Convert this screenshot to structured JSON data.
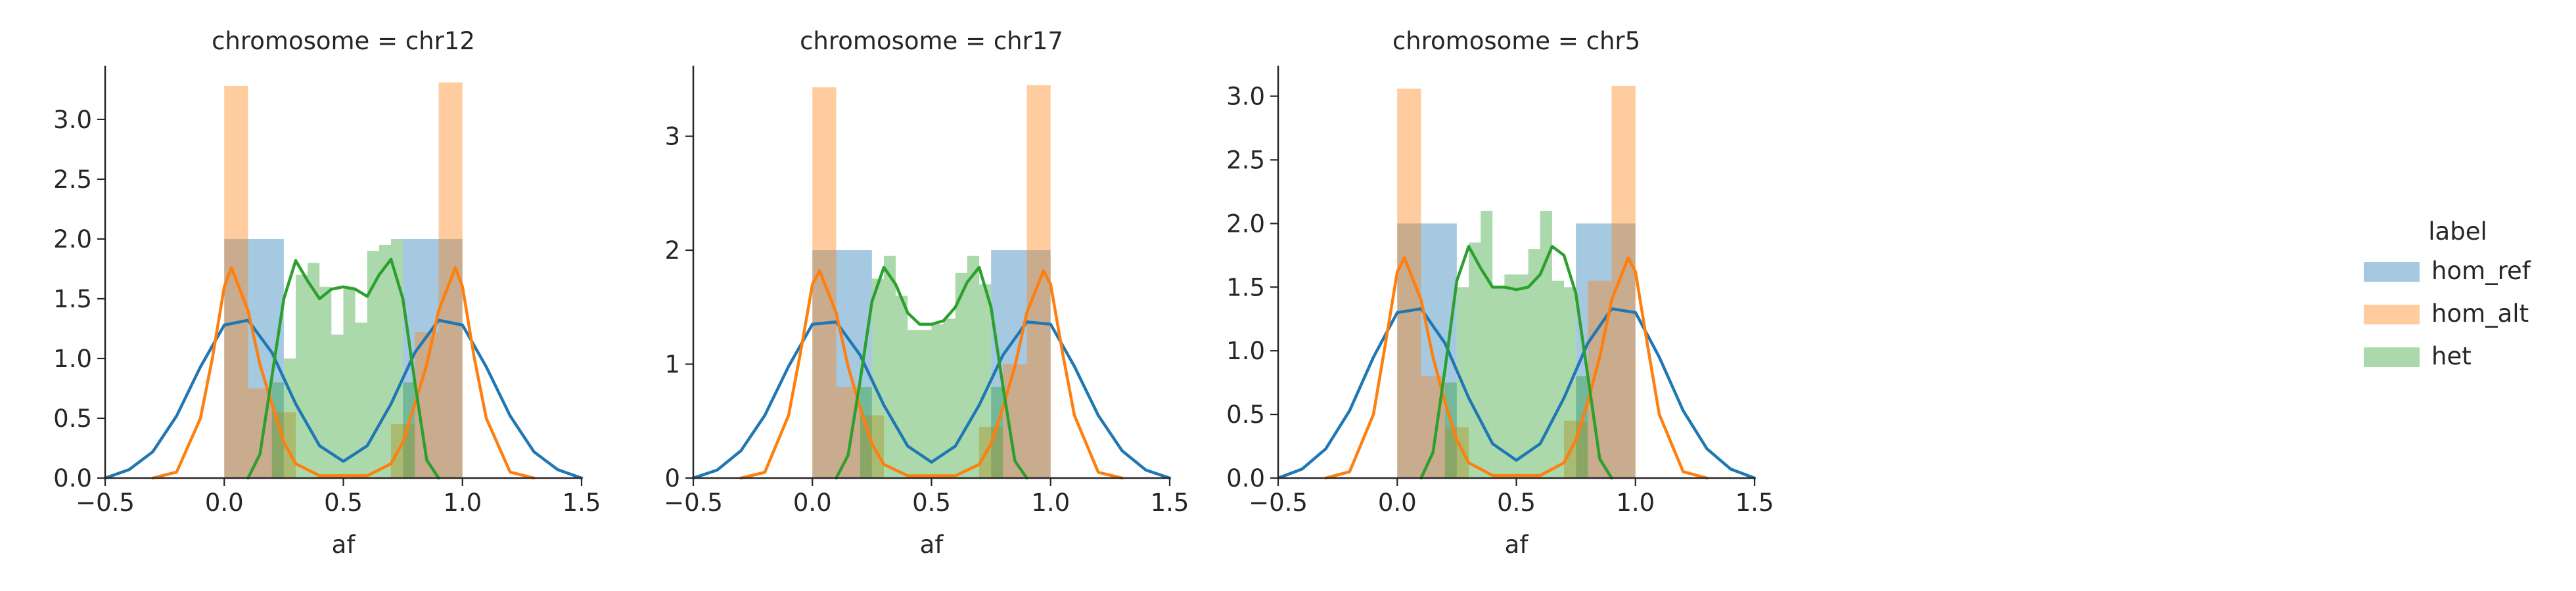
{
  "legend": {
    "title": "label",
    "items": [
      {
        "label": "hom_ref",
        "color": "#1f77b4"
      },
      {
        "label": "hom_alt",
        "color": "#ff7f0e"
      },
      {
        "label": "het",
        "color": "#2ca02c"
      }
    ]
  },
  "chart_data": [
    {
      "type": "bar",
      "title": "chromosome = chr12",
      "xlabel": "af",
      "ylabel": "",
      "xlim": [
        -0.5,
        1.5
      ],
      "ylim": [
        0,
        3.45
      ],
      "xticks": [
        "−0.5",
        "0.0",
        "0.5",
        "1.0",
        "1.5"
      ],
      "yticks": [
        "0.0",
        "0.5",
        "1.0",
        "1.5",
        "2.0",
        "2.5",
        "3.0"
      ],
      "histograms": [
        {
          "series": "hom_ref",
          "bins": [
            [
              0.0,
              0.25,
              2.0
            ],
            [
              0.75,
              1.0,
              2.0
            ]
          ]
        },
        {
          "series": "hom_alt",
          "bins": [
            [
              0.0,
              0.1,
              3.28
            ],
            [
              0.1,
              0.2,
              0.75
            ],
            [
              0.2,
              0.3,
              0.55
            ],
            [
              0.7,
              0.8,
              0.45
            ],
            [
              0.8,
              0.9,
              1.22
            ],
            [
              0.9,
              1.0,
              3.31
            ]
          ]
        },
        {
          "series": "het",
          "bins": [
            [
              0.2,
              0.25,
              0.8
            ],
            [
              0.25,
              0.3,
              1.0
            ],
            [
              0.3,
              0.35,
              1.7
            ],
            [
              0.35,
              0.4,
              1.8
            ],
            [
              0.4,
              0.45,
              1.6
            ],
            [
              0.45,
              0.5,
              1.2
            ],
            [
              0.5,
              0.55,
              1.6
            ],
            [
              0.55,
              0.6,
              1.3
            ],
            [
              0.6,
              0.65,
              1.9
            ],
            [
              0.65,
              0.7,
              1.95
            ],
            [
              0.7,
              0.75,
              2.0
            ],
            [
              0.75,
              0.8,
              0.8
            ]
          ]
        }
      ],
      "kde": [
        {
          "series": "hom_ref",
          "x": [
            -0.5,
            -0.4,
            -0.3,
            -0.2,
            -0.1,
            0.0,
            0.1,
            0.2,
            0.3,
            0.4,
            0.5,
            0.6,
            0.7,
            0.8,
            0.9,
            1.0,
            1.1,
            1.2,
            1.3,
            1.4,
            1.5
          ],
          "y": [
            0.0,
            0.07,
            0.22,
            0.52,
            0.93,
            1.28,
            1.32,
            1.05,
            0.62,
            0.27,
            0.14,
            0.27,
            0.62,
            1.05,
            1.32,
            1.28,
            0.93,
            0.52,
            0.22,
            0.07,
            0.0
          ]
        },
        {
          "series": "hom_alt",
          "x": [
            -0.3,
            -0.2,
            -0.1,
            -0.05,
            0.0,
            0.03,
            0.1,
            0.15,
            0.2,
            0.25,
            0.3,
            0.4,
            0.6,
            0.7,
            0.75,
            0.8,
            0.85,
            0.9,
            0.97,
            1.0,
            1.05,
            1.1,
            1.2,
            1.3
          ],
          "y": [
            0.0,
            0.05,
            0.5,
            1.0,
            1.6,
            1.76,
            1.4,
            0.95,
            0.62,
            0.3,
            0.12,
            0.02,
            0.02,
            0.12,
            0.3,
            0.62,
            0.95,
            1.4,
            1.76,
            1.6,
            1.0,
            0.5,
            0.05,
            0.0
          ]
        },
        {
          "series": "het",
          "x": [
            0.1,
            0.15,
            0.2,
            0.25,
            0.3,
            0.35,
            0.4,
            0.45,
            0.5,
            0.55,
            0.6,
            0.65,
            0.7,
            0.75,
            0.8,
            0.85,
            0.9
          ],
          "y": [
            0.0,
            0.2,
            0.85,
            1.5,
            1.82,
            1.65,
            1.5,
            1.58,
            1.6,
            1.58,
            1.52,
            1.7,
            1.83,
            1.5,
            0.8,
            0.15,
            0.0
          ]
        }
      ]
    },
    {
      "type": "bar",
      "title": "chromosome = chr17",
      "xlabel": "af",
      "ylabel": "",
      "xlim": [
        -0.5,
        1.5
      ],
      "ylim": [
        0,
        3.62
      ],
      "xticks": [
        "−0.5",
        "0.0",
        "0.5",
        "1.0",
        "1.5"
      ],
      "yticks": [
        "0",
        "1",
        "2",
        "3"
      ],
      "histograms": [
        {
          "series": "hom_ref",
          "bins": [
            [
              0.0,
              0.25,
              2.0
            ],
            [
              0.75,
              1.0,
              2.0
            ]
          ]
        },
        {
          "series": "hom_alt",
          "bins": [
            [
              0.0,
              0.1,
              3.43
            ],
            [
              0.1,
              0.2,
              0.8
            ],
            [
              0.2,
              0.3,
              0.55
            ],
            [
              0.7,
              0.8,
              0.45
            ],
            [
              0.8,
              0.9,
              1.0
            ],
            [
              0.9,
              1.0,
              3.45
            ]
          ]
        },
        {
          "series": "het",
          "bins": [
            [
              0.2,
              0.25,
              0.8
            ],
            [
              0.25,
              0.3,
              1.75
            ],
            [
              0.3,
              0.35,
              1.95
            ],
            [
              0.35,
              0.4,
              1.6
            ],
            [
              0.4,
              0.45,
              1.3
            ],
            [
              0.45,
              0.5,
              1.3
            ],
            [
              0.5,
              0.55,
              1.35
            ],
            [
              0.55,
              0.6,
              1.4
            ],
            [
              0.6,
              0.65,
              1.8
            ],
            [
              0.65,
              0.7,
              1.95
            ],
            [
              0.7,
              0.75,
              1.7
            ],
            [
              0.75,
              0.8,
              0.8
            ]
          ]
        }
      ],
      "kde": [
        {
          "series": "hom_ref",
          "x": [
            -0.5,
            -0.4,
            -0.3,
            -0.2,
            -0.1,
            0.0,
            0.1,
            0.2,
            0.3,
            0.4,
            0.5,
            0.6,
            0.7,
            0.8,
            0.9,
            1.0,
            1.1,
            1.2,
            1.3,
            1.4,
            1.5
          ],
          "y": [
            0.0,
            0.07,
            0.24,
            0.55,
            0.98,
            1.35,
            1.37,
            1.08,
            0.64,
            0.28,
            0.14,
            0.28,
            0.64,
            1.08,
            1.37,
            1.35,
            0.98,
            0.55,
            0.24,
            0.07,
            0.0
          ]
        },
        {
          "series": "hom_alt",
          "x": [
            -0.3,
            -0.2,
            -0.1,
            -0.05,
            0.0,
            0.03,
            0.1,
            0.15,
            0.2,
            0.25,
            0.3,
            0.4,
            0.6,
            0.7,
            0.75,
            0.8,
            0.85,
            0.9,
            0.97,
            1.0,
            1.05,
            1.1,
            1.2,
            1.3
          ],
          "y": [
            0.0,
            0.05,
            0.55,
            1.1,
            1.7,
            1.82,
            1.45,
            0.98,
            0.62,
            0.3,
            0.12,
            0.02,
            0.02,
            0.12,
            0.3,
            0.62,
            0.98,
            1.45,
            1.82,
            1.7,
            1.1,
            0.55,
            0.05,
            0.0
          ]
        },
        {
          "series": "het",
          "x": [
            0.1,
            0.15,
            0.2,
            0.25,
            0.3,
            0.35,
            0.4,
            0.45,
            0.5,
            0.55,
            0.6,
            0.65,
            0.7,
            0.75,
            0.8,
            0.85,
            0.9
          ],
          "y": [
            0.0,
            0.2,
            0.85,
            1.55,
            1.85,
            1.7,
            1.45,
            1.35,
            1.35,
            1.38,
            1.5,
            1.72,
            1.85,
            1.5,
            0.8,
            0.15,
            0.0
          ]
        }
      ]
    },
    {
      "type": "bar",
      "title": "chromosome = chr5",
      "xlabel": "af",
      "ylabel": "",
      "xlim": [
        -0.5,
        1.5
      ],
      "ylim": [
        0,
        3.24
      ],
      "xticks": [
        "−0.5",
        "0.0",
        "0.5",
        "1.0",
        "1.5"
      ],
      "yticks": [
        "0.0",
        "0.5",
        "1.0",
        "1.5",
        "2.0",
        "2.5",
        "3.0"
      ],
      "histograms": [
        {
          "series": "hom_ref",
          "bins": [
            [
              0.0,
              0.25,
              2.0
            ],
            [
              0.75,
              1.0,
              2.0
            ]
          ]
        },
        {
          "series": "hom_alt",
          "bins": [
            [
              0.0,
              0.1,
              3.06
            ],
            [
              0.1,
              0.2,
              0.8
            ],
            [
              0.2,
              0.3,
              0.4
            ],
            [
              0.7,
              0.8,
              0.45
            ],
            [
              0.8,
              0.9,
              1.55
            ],
            [
              0.9,
              1.0,
              3.08
            ]
          ]
        },
        {
          "series": "het",
          "bins": [
            [
              0.2,
              0.25,
              0.75
            ],
            [
              0.25,
              0.3,
              1.5
            ],
            [
              0.3,
              0.35,
              1.85
            ],
            [
              0.35,
              0.4,
              2.1
            ],
            [
              0.4,
              0.45,
              1.5
            ],
            [
              0.45,
              0.5,
              1.6
            ],
            [
              0.5,
              0.55,
              1.6
            ],
            [
              0.55,
              0.6,
              1.8
            ],
            [
              0.6,
              0.65,
              2.1
            ],
            [
              0.65,
              0.7,
              1.55
            ],
            [
              0.7,
              0.75,
              1.5
            ],
            [
              0.75,
              0.8,
              0.8
            ]
          ]
        }
      ],
      "kde": [
        {
          "series": "hom_ref",
          "x": [
            -0.5,
            -0.4,
            -0.3,
            -0.2,
            -0.1,
            0.0,
            0.1,
            0.2,
            0.3,
            0.4,
            0.5,
            0.6,
            0.7,
            0.8,
            0.9,
            1.0,
            1.1,
            1.2,
            1.3,
            1.4,
            1.5
          ],
          "y": [
            0.0,
            0.07,
            0.23,
            0.53,
            0.95,
            1.3,
            1.33,
            1.06,
            0.63,
            0.27,
            0.14,
            0.27,
            0.63,
            1.06,
            1.33,
            1.3,
            0.95,
            0.53,
            0.23,
            0.07,
            0.0
          ]
        },
        {
          "series": "hom_alt",
          "x": [
            -0.3,
            -0.2,
            -0.1,
            -0.05,
            0.0,
            0.03,
            0.1,
            0.15,
            0.2,
            0.25,
            0.3,
            0.4,
            0.6,
            0.7,
            0.75,
            0.8,
            0.85,
            0.9,
            0.97,
            1.0,
            1.05,
            1.1,
            1.2,
            1.3
          ],
          "y": [
            0.0,
            0.05,
            0.5,
            1.05,
            1.62,
            1.73,
            1.4,
            0.95,
            0.6,
            0.3,
            0.12,
            0.02,
            0.02,
            0.12,
            0.3,
            0.6,
            0.95,
            1.4,
            1.73,
            1.62,
            1.05,
            0.5,
            0.05,
            0.0
          ]
        },
        {
          "series": "het",
          "x": [
            0.1,
            0.15,
            0.2,
            0.25,
            0.3,
            0.35,
            0.4,
            0.45,
            0.5,
            0.55,
            0.6,
            0.65,
            0.7,
            0.75,
            0.8,
            0.85,
            0.9
          ],
          "y": [
            0.0,
            0.2,
            0.85,
            1.55,
            1.82,
            1.65,
            1.5,
            1.5,
            1.48,
            1.5,
            1.6,
            1.82,
            1.75,
            1.45,
            0.8,
            0.15,
            0.0
          ]
        }
      ]
    }
  ]
}
